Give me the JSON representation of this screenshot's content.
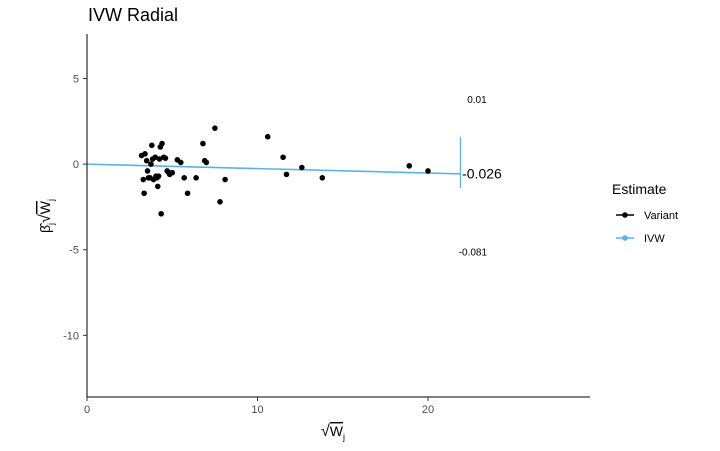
{
  "chart_data": {
    "type": "scatter",
    "title": "IVW Radial",
    "xlabel": "√Wj",
    "ylabel": "β̂j√Wj",
    "xlim": [
      0,
      29.5
    ],
    "ylim": [
      -13.6,
      7.6
    ],
    "x_ticks": [
      0,
      10,
      20
    ],
    "y_ticks": [
      5,
      0,
      -5,
      -10
    ],
    "grid": false,
    "legend": {
      "title": "Estimate",
      "position": "right",
      "items": [
        {
          "label": "Variant",
          "color": "#000000"
        },
        {
          "label": "IVW",
          "color": "#56B4E9"
        }
      ]
    },
    "series": [
      {
        "name": "Variant",
        "color": "#000000",
        "points": [
          [
            3.2,
            0.5
          ],
          [
            3.3,
            -0.9
          ],
          [
            3.35,
            -1.7
          ],
          [
            3.4,
            0.6
          ],
          [
            3.5,
            0.2
          ],
          [
            3.55,
            -0.4
          ],
          [
            3.6,
            -0.8
          ],
          [
            3.7,
            -0.8
          ],
          [
            3.75,
            0.0
          ],
          [
            3.8,
            1.1
          ],
          [
            3.85,
            0.3
          ],
          [
            3.9,
            -0.9
          ],
          [
            4.0,
            0.4
          ],
          [
            4.05,
            -0.7
          ],
          [
            4.1,
            -0.8
          ],
          [
            4.15,
            -1.3
          ],
          [
            4.2,
            -0.7
          ],
          [
            4.25,
            0.3
          ],
          [
            4.3,
            1.0
          ],
          [
            4.35,
            -2.9
          ],
          [
            4.4,
            1.2
          ],
          [
            4.5,
            0.4
          ],
          [
            4.6,
            0.35
          ],
          [
            4.7,
            -0.4
          ],
          [
            4.8,
            -0.5
          ],
          [
            4.85,
            -0.6
          ],
          [
            5.0,
            -0.5
          ],
          [
            5.3,
            0.25
          ],
          [
            5.5,
            0.1
          ],
          [
            5.7,
            -0.8
          ],
          [
            5.9,
            -1.7
          ],
          [
            6.4,
            -0.8
          ],
          [
            6.8,
            1.2
          ],
          [
            6.9,
            0.2
          ],
          [
            7.0,
            0.1
          ],
          [
            7.5,
            2.1
          ],
          [
            7.8,
            -2.2
          ],
          [
            8.1,
            -0.9
          ],
          [
            10.6,
            1.6
          ],
          [
            11.5,
            0.4
          ],
          [
            11.7,
            -0.6
          ],
          [
            12.6,
            -0.2
          ],
          [
            13.8,
            -0.8
          ],
          [
            18.9,
            -0.1
          ],
          [
            20.0,
            -0.4
          ]
        ]
      },
      {
        "name": "IVW",
        "color": "#56B4E9",
        "slope": -0.026,
        "line_x": [
          0,
          21.9
        ]
      }
    ],
    "annotations": [
      {
        "text": "0.01",
        "x": 22.3,
        "y": 3.8
      },
      {
        "text": "-0.026",
        "x": 22.0,
        "y": -0.6
      },
      {
        "text": "-0.081",
        "x": 21.8,
        "y": -5.1
      }
    ]
  }
}
